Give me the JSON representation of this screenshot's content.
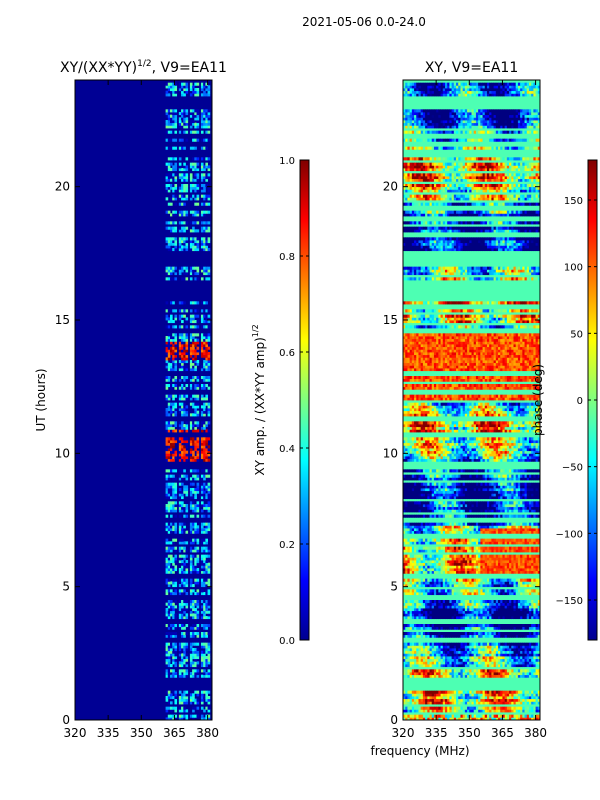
{
  "chart_data": {
    "type": "heatmap",
    "suptitle": "2021-05-06 0.0-24.0",
    "xlabel": "frequency (MHz)",
    "xlim": [
      320,
      382
    ],
    "xticks": [
      "320",
      "335",
      "350",
      "365",
      "380"
    ],
    "xtick_values": [
      320,
      335,
      350,
      365,
      380
    ],
    "ylim": [
      0,
      24
    ],
    "yticks": [
      "0",
      "5",
      "10",
      "15",
      "20"
    ],
    "ytick_values": [
      0,
      5,
      10,
      15,
      20
    ],
    "panels": [
      {
        "id": "amp",
        "title_main": "XY/(XX*YY)",
        "title_sup": "1/2",
        "title_suffix": ", V9=EA11",
        "ylabel": "UT (hours)",
        "colorbar": {
          "label_main": "XY amp. / (XX*YY amp)",
          "label_sup": "1/2",
          "range": [
            0,
            1
          ],
          "ticks": [
            "0.0",
            "0.2",
            "0.4",
            "0.6",
            "0.8",
            "1.0"
          ],
          "tick_values": [
            0.0,
            0.2,
            0.4,
            0.6,
            0.8,
            1.0
          ]
        }
      },
      {
        "id": "phase",
        "title_main": "XY, V9=EA11",
        "title_sup": "",
        "title_suffix": "",
        "ylabel": "",
        "colorbar": {
          "label_main": "phase (deg)",
          "label_sup": "",
          "range": [
            -180,
            180
          ],
          "ticks": [
            "−150",
            "−100",
            "−50",
            "0",
            "50",
            "100",
            "150"
          ],
          "tick_values": [
            -150,
            -100,
            -50,
            0,
            50,
            100,
            150
          ]
        }
      }
    ],
    "flagged_hours": [
      0.25,
      0.55,
      1.15,
      1.5,
      1.95,
      3.0,
      3.35,
      3.7,
      4.6,
      4.95,
      5.4,
      6.25,
      6.55,
      6.9,
      7.5,
      7.75,
      8.25,
      8.95,
      9.25,
      9.5,
      9.65,
      10.7,
      11.3,
      11.95,
      12.3,
      12.65,
      13.0,
      14.6,
      14.85,
      15.25,
      15.5,
      15.75,
      16.65,
      17.3,
      18.2,
      18.55,
      18.8,
      19.2,
      19.45,
      19.75,
      20.15,
      20.55,
      20.95,
      21.25,
      21.6,
      21.9,
      22.15,
      24.0
    ],
    "flagged_bands": [
      [
        1.2,
        1.45
      ],
      [
        15.8,
        16.5
      ],
      [
        17.05,
        17.55
      ],
      [
        21.1,
        21.35
      ],
      [
        22.95,
        23.4
      ]
    ],
    "amp_strong_hours": [
      [
        9.45,
        10.85
      ],
      [
        13.55,
        14.15
      ]
    ],
    "amp_bright_channels_mhz": [
      [
        361,
        366
      ],
      [
        367,
        371
      ],
      [
        372,
        376
      ],
      [
        377,
        381
      ]
    ]
  }
}
